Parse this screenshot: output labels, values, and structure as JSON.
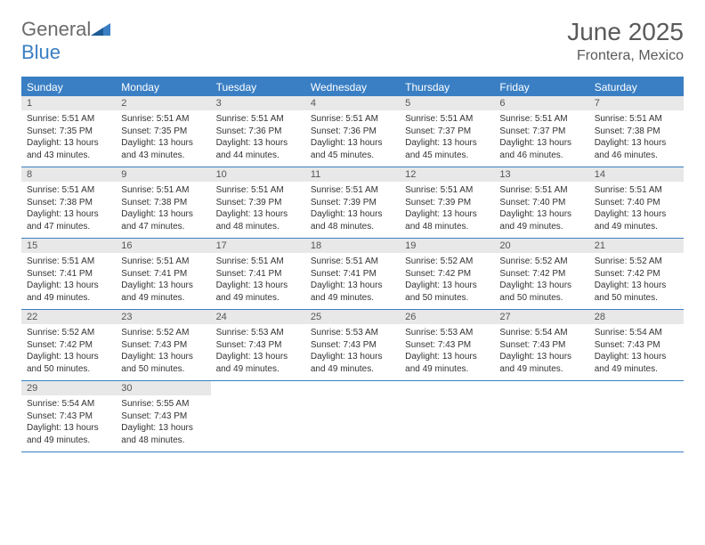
{
  "brand": {
    "part1": "General",
    "part2": "Blue"
  },
  "title": "June 2025",
  "location": "Frontera, Mexico",
  "colors": {
    "accent": "#3a7fc4",
    "header_text": "#5a5a5a",
    "daynum_bg": "#e8e8e8",
    "body_text": "#333333"
  },
  "weekdays": [
    "Sunday",
    "Monday",
    "Tuesday",
    "Wednesday",
    "Thursday",
    "Friday",
    "Saturday"
  ],
  "weeks": [
    [
      {
        "n": "1",
        "sr": "Sunrise: 5:51 AM",
        "ss": "Sunset: 7:35 PM",
        "d1": "Daylight: 13 hours",
        "d2": "and 43 minutes."
      },
      {
        "n": "2",
        "sr": "Sunrise: 5:51 AM",
        "ss": "Sunset: 7:35 PM",
        "d1": "Daylight: 13 hours",
        "d2": "and 43 minutes."
      },
      {
        "n": "3",
        "sr": "Sunrise: 5:51 AM",
        "ss": "Sunset: 7:36 PM",
        "d1": "Daylight: 13 hours",
        "d2": "and 44 minutes."
      },
      {
        "n": "4",
        "sr": "Sunrise: 5:51 AM",
        "ss": "Sunset: 7:36 PM",
        "d1": "Daylight: 13 hours",
        "d2": "and 45 minutes."
      },
      {
        "n": "5",
        "sr": "Sunrise: 5:51 AM",
        "ss": "Sunset: 7:37 PM",
        "d1": "Daylight: 13 hours",
        "d2": "and 45 minutes."
      },
      {
        "n": "6",
        "sr": "Sunrise: 5:51 AM",
        "ss": "Sunset: 7:37 PM",
        "d1": "Daylight: 13 hours",
        "d2": "and 46 minutes."
      },
      {
        "n": "7",
        "sr": "Sunrise: 5:51 AM",
        "ss": "Sunset: 7:38 PM",
        "d1": "Daylight: 13 hours",
        "d2": "and 46 minutes."
      }
    ],
    [
      {
        "n": "8",
        "sr": "Sunrise: 5:51 AM",
        "ss": "Sunset: 7:38 PM",
        "d1": "Daylight: 13 hours",
        "d2": "and 47 minutes."
      },
      {
        "n": "9",
        "sr": "Sunrise: 5:51 AM",
        "ss": "Sunset: 7:38 PM",
        "d1": "Daylight: 13 hours",
        "d2": "and 47 minutes."
      },
      {
        "n": "10",
        "sr": "Sunrise: 5:51 AM",
        "ss": "Sunset: 7:39 PM",
        "d1": "Daylight: 13 hours",
        "d2": "and 48 minutes."
      },
      {
        "n": "11",
        "sr": "Sunrise: 5:51 AM",
        "ss": "Sunset: 7:39 PM",
        "d1": "Daylight: 13 hours",
        "d2": "and 48 minutes."
      },
      {
        "n": "12",
        "sr": "Sunrise: 5:51 AM",
        "ss": "Sunset: 7:39 PM",
        "d1": "Daylight: 13 hours",
        "d2": "and 48 minutes."
      },
      {
        "n": "13",
        "sr": "Sunrise: 5:51 AM",
        "ss": "Sunset: 7:40 PM",
        "d1": "Daylight: 13 hours",
        "d2": "and 49 minutes."
      },
      {
        "n": "14",
        "sr": "Sunrise: 5:51 AM",
        "ss": "Sunset: 7:40 PM",
        "d1": "Daylight: 13 hours",
        "d2": "and 49 minutes."
      }
    ],
    [
      {
        "n": "15",
        "sr": "Sunrise: 5:51 AM",
        "ss": "Sunset: 7:41 PM",
        "d1": "Daylight: 13 hours",
        "d2": "and 49 minutes."
      },
      {
        "n": "16",
        "sr": "Sunrise: 5:51 AM",
        "ss": "Sunset: 7:41 PM",
        "d1": "Daylight: 13 hours",
        "d2": "and 49 minutes."
      },
      {
        "n": "17",
        "sr": "Sunrise: 5:51 AM",
        "ss": "Sunset: 7:41 PM",
        "d1": "Daylight: 13 hours",
        "d2": "and 49 minutes."
      },
      {
        "n": "18",
        "sr": "Sunrise: 5:51 AM",
        "ss": "Sunset: 7:41 PM",
        "d1": "Daylight: 13 hours",
        "d2": "and 49 minutes."
      },
      {
        "n": "19",
        "sr": "Sunrise: 5:52 AM",
        "ss": "Sunset: 7:42 PM",
        "d1": "Daylight: 13 hours",
        "d2": "and 50 minutes."
      },
      {
        "n": "20",
        "sr": "Sunrise: 5:52 AM",
        "ss": "Sunset: 7:42 PM",
        "d1": "Daylight: 13 hours",
        "d2": "and 50 minutes."
      },
      {
        "n": "21",
        "sr": "Sunrise: 5:52 AM",
        "ss": "Sunset: 7:42 PM",
        "d1": "Daylight: 13 hours",
        "d2": "and 50 minutes."
      }
    ],
    [
      {
        "n": "22",
        "sr": "Sunrise: 5:52 AM",
        "ss": "Sunset: 7:42 PM",
        "d1": "Daylight: 13 hours",
        "d2": "and 50 minutes."
      },
      {
        "n": "23",
        "sr": "Sunrise: 5:52 AM",
        "ss": "Sunset: 7:43 PM",
        "d1": "Daylight: 13 hours",
        "d2": "and 50 minutes."
      },
      {
        "n": "24",
        "sr": "Sunrise: 5:53 AM",
        "ss": "Sunset: 7:43 PM",
        "d1": "Daylight: 13 hours",
        "d2": "and 49 minutes."
      },
      {
        "n": "25",
        "sr": "Sunrise: 5:53 AM",
        "ss": "Sunset: 7:43 PM",
        "d1": "Daylight: 13 hours",
        "d2": "and 49 minutes."
      },
      {
        "n": "26",
        "sr": "Sunrise: 5:53 AM",
        "ss": "Sunset: 7:43 PM",
        "d1": "Daylight: 13 hours",
        "d2": "and 49 minutes."
      },
      {
        "n": "27",
        "sr": "Sunrise: 5:54 AM",
        "ss": "Sunset: 7:43 PM",
        "d1": "Daylight: 13 hours",
        "d2": "and 49 minutes."
      },
      {
        "n": "28",
        "sr": "Sunrise: 5:54 AM",
        "ss": "Sunset: 7:43 PM",
        "d1": "Daylight: 13 hours",
        "d2": "and 49 minutes."
      }
    ],
    [
      {
        "n": "29",
        "sr": "Sunrise: 5:54 AM",
        "ss": "Sunset: 7:43 PM",
        "d1": "Daylight: 13 hours",
        "d2": "and 49 minutes."
      },
      {
        "n": "30",
        "sr": "Sunrise: 5:55 AM",
        "ss": "Sunset: 7:43 PM",
        "d1": "Daylight: 13 hours",
        "d2": "and 48 minutes."
      },
      null,
      null,
      null,
      null,
      null
    ]
  ]
}
